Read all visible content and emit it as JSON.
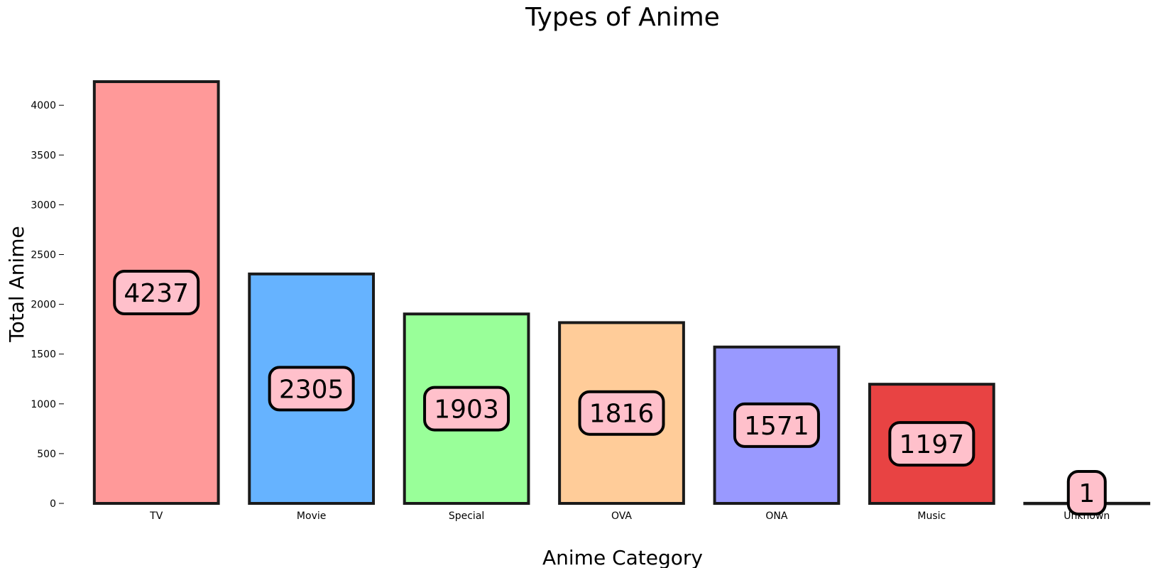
{
  "chart_data": {
    "type": "bar",
    "title": "Types of Anime",
    "xlabel": "Anime Category",
    "ylabel": "Total Anime",
    "categories": [
      "TV",
      "Movie",
      "Special",
      "OVA",
      "ONA",
      "Music",
      "Unknown"
    ],
    "values": [
      4237,
      2305,
      1903,
      1816,
      1571,
      1197,
      1
    ],
    "data_labels": [
      "4237",
      "2305",
      "1903",
      "1816",
      "1571",
      "1197",
      "1"
    ],
    "bar_colors": [
      "#ff9999",
      "#66b3ff",
      "#99ff99",
      "#ffcc99",
      "#9999ff",
      "#e84343",
      "#ffffff"
    ],
    "label_box_color": "#ffc0cb",
    "bar_edge_color": "#1a1a1a",
    "yticks": [
      0,
      500,
      1000,
      1500,
      2000,
      2500,
      3000,
      3500,
      4000
    ],
    "ytick_labels": [
      "0",
      "500",
      "1000",
      "1500",
      "2000",
      "2500",
      "3000",
      "3500",
      "4000"
    ],
    "ylim": [
      0,
      4237
    ],
    "grid": false
  }
}
